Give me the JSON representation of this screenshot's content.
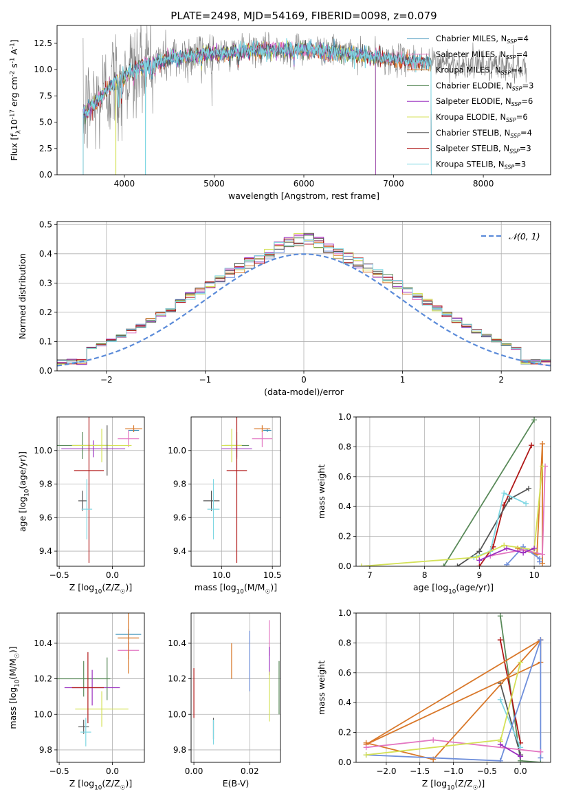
{
  "title": "PLATE=2498, MJD=54169, FIBERID=0098, z=0.079",
  "colors": {
    "Chabrier MILES": "#3a8fb7",
    "Salpeter MILES": "#e377c2",
    "Kroupa MILES": "#d9782a",
    "Chabrier ELODIE": "#5a8a5a",
    "Salpeter ELODIE": "#9b30c0",
    "Kroupa ELODIE": "#d4e157",
    "Chabrier STELIB": "#555555",
    "Salpeter STELIB": "#b01818",
    "Kroupa STELIB": "#7fd7e3",
    "MILES_mw_blue": "#6f8fdb",
    "data_grey": "#808080",
    "gauss": "#5b8bd9"
  },
  "chart_data": [
    {
      "id": "spectrum",
      "type": "line",
      "xlabel": "wavelength [Angstrom, rest frame]",
      "ylabel": "Flux [f$_\\lambda$10$^{-17}$ erg cm$^{-2}$ s$^{-1}$ A$^{-1}$]",
      "xlim": [
        3250,
        8750
      ],
      "ylim": [
        0,
        14.2
      ],
      "xticks": [
        4000,
        5000,
        6000,
        7000,
        8000
      ],
      "yticks": [
        0.0,
        2.5,
        5.0,
        7.5,
        10.0,
        12.5
      ],
      "grid": false,
      "legend_position": "right",
      "legend": [
        {
          "key": "Chabrier MILES",
          "label": "Chabrier MILES, N",
          "sub": "SSP",
          "n": "=4"
        },
        {
          "key": "Salpeter MILES",
          "label": "Salpeter MILES, N",
          "sub": "SSP",
          "n": "=4"
        },
        {
          "key": "Kroupa MILES",
          "label": "Kroupa MILES, N",
          "sub": "SSP",
          "n": "=4"
        },
        {
          "key": "Chabrier ELODIE",
          "label": "Chabrier ELODIE, N",
          "sub": "SSP",
          "n": "=3"
        },
        {
          "key": "Salpeter ELODIE",
          "label": "Salpeter ELODIE, N",
          "sub": "SSP",
          "n": "=6"
        },
        {
          "key": "Kroupa ELODIE",
          "label": "Kroupa ELODIE, N",
          "sub": "SSP",
          "n": "=6"
        },
        {
          "key": "Chabrier STELIB",
          "label": "Chabrier STELIB, N",
          "sub": "SSP",
          "n": "=4"
        },
        {
          "key": "Salpeter STELIB",
          "label": "Salpeter STELIB, N",
          "sub": "SSP",
          "n": "=3"
        },
        {
          "key": "Kroupa STELIB",
          "label": "Kroupa STELIB, N",
          "sub": "SSP",
          "n": "=3"
        }
      ],
      "continuum_anchors": [
        [
          3540,
          5.8
        ],
        [
          3700,
          7.0
        ],
        [
          3850,
          8.6
        ],
        [
          4000,
          9.6
        ],
        [
          4200,
          10.4
        ],
        [
          4500,
          11.1
        ],
        [
          5000,
          11.6
        ],
        [
          5500,
          11.9
        ],
        [
          6000,
          12.0
        ],
        [
          6500,
          11.6
        ],
        [
          7000,
          11.0
        ],
        [
          7500,
          10.7
        ],
        [
          8000,
          10.4
        ],
        [
          8500,
          10.2
        ]
      ],
      "model_ranges": {
        "ELODIE": [
          3540,
          6800
        ],
        "STELIB": [
          3540,
          7420
        ],
        "MILES": [
          3540,
          7420
        ]
      }
    },
    {
      "id": "residuals",
      "type": "histogram",
      "xlabel": "(data-model)/error",
      "ylabel": "Normed distribution",
      "xlim": [
        -2.5,
        2.5
      ],
      "ylim": [
        0,
        0.51
      ],
      "xticks": [
        -2,
        -1,
        0,
        1,
        2
      ],
      "yticks": [
        0.0,
        0.1,
        0.2,
        0.3,
        0.4,
        0.5
      ],
      "grid": true,
      "legend_position": "upper right",
      "legend_label": "𝒩(0, 1)",
      "bin_width": 0.1
    },
    {
      "id": "age_vs_Z",
      "type": "scatter",
      "xlabel": "Z [log$_{10}$(Z/Z$_\\odot$)]",
      "ylabel": "age  [log$_{10}$(age/yr)]",
      "xlim": [
        -0.52,
        0.3
      ],
      "ylim": [
        9.31,
        10.2
      ],
      "xticks": [
        -0.5,
        0.0
      ],
      "yticks": [
        9.4,
        9.6,
        9.8,
        10.0
      ],
      "grid": true,
      "points": [
        {
          "key": "Chabrier MILES",
          "x": 0.2,
          "y": 10.12,
          "xerr": 0.05,
          "yerr": 0.01
        },
        {
          "key": "Salpeter MILES",
          "x": 0.15,
          "y": 10.07,
          "xerr": 0.1,
          "yerr": 0.05
        },
        {
          "key": "Kroupa MILES",
          "x": 0.2,
          "y": 10.13,
          "xerr": 0.08,
          "yerr": 0.02
        },
        {
          "key": "Chabrier ELODIE",
          "x": -0.28,
          "y": 10.03,
          "xerr": 0.25,
          "yerr": 0.08
        },
        {
          "key": "Salpeter ELODIE",
          "x": -0.18,
          "y": 10.01,
          "xerr": 0.3,
          "yerr": 0.05
        },
        {
          "key": "Kroupa ELODIE",
          "x": -0.1,
          "y": 10.03,
          "xerr": 0.28,
          "yerr": 0.1
        },
        {
          "key": "Chabrier STELIB",
          "x": -0.28,
          "y": 9.7,
          "xerr": 0.04,
          "yerr": 0.06
        },
        {
          "key": "Salpeter STELIB",
          "x": -0.22,
          "y": 9.88,
          "xerr": 0.14,
          "yerr": 0.55
        },
        {
          "key": "Kroupa STELIB",
          "x": -0.24,
          "y": 9.65,
          "xerr": 0.05,
          "yerr": 0.18
        },
        {
          "key": "Chabrier STELIB",
          "x": -0.05,
          "y": 10.0,
          "xerr": 0.0,
          "yerr": 0.15
        }
      ]
    },
    {
      "id": "age_vs_mass",
      "type": "scatter",
      "xlabel": "mass [log$_{10}$(M/M$_\\odot$)]",
      "ylabel": "",
      "xlim": [
        9.7,
        10.58
      ],
      "ylim": [
        9.31,
        10.2
      ],
      "xticks": [
        10.0,
        10.5
      ],
      "yticks": [
        9.4,
        9.6,
        9.8,
        10.0
      ],
      "grid": true,
      "points": [
        {
          "key": "Chabrier MILES",
          "x": 10.45,
          "y": 10.12,
          "xerr": 0.04,
          "yerr": 0.01
        },
        {
          "key": "Salpeter MILES",
          "x": 10.4,
          "y": 10.07,
          "xerr": 0.1,
          "yerr": 0.05
        },
        {
          "key": "Kroupa MILES",
          "x": 10.4,
          "y": 10.13,
          "xerr": 0.08,
          "yerr": 0.02
        },
        {
          "key": "Chabrier ELODIE",
          "x": 10.15,
          "y": 10.03,
          "xerr": 0.12,
          "yerr": 0.08
        },
        {
          "key": "Salpeter ELODIE",
          "x": 10.15,
          "y": 10.01,
          "xerr": 0.15,
          "yerr": 0.05
        },
        {
          "key": "Kroupa ELODIE",
          "x": 10.1,
          "y": 10.03,
          "xerr": 0.1,
          "yerr": 0.1
        },
        {
          "key": "Chabrier STELIB",
          "x": 9.9,
          "y": 9.7,
          "xerr": 0.08,
          "yerr": 0.06
        },
        {
          "key": "Salpeter STELIB",
          "x": 10.15,
          "y": 9.88,
          "xerr": 0.1,
          "yerr": 0.55
        },
        {
          "key": "Kroupa STELIB",
          "x": 9.92,
          "y": 9.65,
          "xerr": 0.06,
          "yerr": 0.18
        }
      ]
    },
    {
      "id": "mw_vs_age",
      "type": "line",
      "xlabel": "age  [log$_{10}$(age/yr)]",
      "ylabel": "mass weight",
      "xlim": [
        6.75,
        10.3
      ],
      "ylim": [
        0,
        1.0
      ],
      "xticks": [
        7,
        8,
        9,
        10
      ],
      "yticks": [
        0.0,
        0.2,
        0.4,
        0.6,
        0.8,
        1.0
      ],
      "grid": true,
      "series": [
        {
          "key": "Chabrier ELODIE",
          "x": [
            8.35,
            10.0
          ],
          "y": [
            0.0,
            0.98
          ]
        },
        {
          "key": "Kroupa MILES",
          "x": [
            9.7,
            10.05,
            10.15,
            10.15
          ],
          "y": [
            0.12,
            0.08,
            0.82,
            0.02
          ]
        },
        {
          "key": "MILES_mw_blue",
          "x": [
            9.5,
            9.8,
            10.1,
            10.1
          ],
          "y": [
            0.01,
            0.13,
            0.05,
            0.03
          ]
        },
        {
          "key": "Salpeter MILES",
          "x": [
            9.2,
            9.8,
            10.15,
            10.2
          ],
          "y": [
            0.07,
            0.11,
            0.08,
            0.67
          ]
        },
        {
          "key": "Salpeter STELIB",
          "x": [
            9.0,
            9.25,
            9.45,
            9.95
          ],
          "y": [
            0.0,
            0.13,
            0.41,
            0.81
          ]
        },
        {
          "key": "Chabrier STELIB",
          "x": [
            8.6,
            9.0,
            9.55,
            9.9
          ],
          "y": [
            0.0,
            0.1,
            0.45,
            0.52
          ]
        },
        {
          "key": "Kroupa STELIB",
          "x": [
            8.9,
            9.2,
            9.45,
            9.85
          ],
          "y": [
            0.06,
            0.1,
            0.49,
            0.42
          ]
        },
        {
          "key": "Kroupa ELODIE",
          "x": [
            6.85,
            8.95,
            9.45,
            10.0,
            10.15
          ],
          "y": [
            0.0,
            0.06,
            0.14,
            0.11,
            0.67
          ]
        },
        {
          "key": "Salpeter ELODIE",
          "x": [
            9.0,
            9.5,
            9.8,
            10.0
          ],
          "y": [
            0.04,
            0.12,
            0.09,
            0.12
          ]
        }
      ]
    },
    {
      "id": "mass_vs_Z",
      "type": "scatter",
      "xlabel": "Z [log$_{10}$(Z/Z$_\\odot$)]",
      "ylabel": "mass [log$_{10}$(M/M$_\\odot$)]",
      "xlim": [
        -0.52,
        0.3
      ],
      "ylim": [
        9.73,
        10.57
      ],
      "xticks": [
        -0.5,
        0.0
      ],
      "yticks": [
        9.8,
        10.0,
        10.2,
        10.4
      ],
      "grid": true,
      "points": [
        {
          "key": "Chabrier MILES",
          "x": 0.15,
          "y": 10.45,
          "xerr": 0.12,
          "yerr": 0.03
        },
        {
          "key": "Salpeter MILES",
          "x": 0.15,
          "y": 10.36,
          "xerr": 0.1,
          "yerr": 0.05
        },
        {
          "key": "Kroupa MILES",
          "x": 0.15,
          "y": 10.43,
          "xerr": 0.1,
          "yerr": 0.2
        },
        {
          "key": "Chabrier ELODIE",
          "x": -0.27,
          "y": 10.2,
          "xerr": 0.25,
          "yerr": 0.1
        },
        {
          "key": "Salpeter ELODIE",
          "x": -0.19,
          "y": 10.15,
          "xerr": 0.26,
          "yerr": 0.1
        },
        {
          "key": "Kroupa ELODIE",
          "x": -0.1,
          "y": 10.03,
          "xerr": 0.25,
          "yerr": 0.1
        },
        {
          "key": "Chabrier STELIB",
          "x": -0.27,
          "y": 9.93,
          "xerr": 0.05,
          "yerr": 0.04
        },
        {
          "key": "Salpeter STELIB",
          "x": -0.23,
          "y": 10.15,
          "xerr": 0.15,
          "yerr": 0.2
        },
        {
          "key": "Kroupa STELIB",
          "x": -0.25,
          "y": 9.9,
          "xerr": 0.05,
          "yerr": 0.08
        },
        {
          "key": "Chabrier ELODIE",
          "x": -0.05,
          "y": 10.2,
          "xerr": 0.0,
          "yerr": 0.12
        }
      ]
    },
    {
      "id": "mass_vs_ebv",
      "type": "scatter",
      "xlabel": "E(B-V)",
      "ylabel": "",
      "xlim": [
        -0.001,
        0.031
      ],
      "ylim": [
        9.73,
        10.57
      ],
      "xticks": [
        0.0,
        0.02
      ],
      "xticklabels": [
        "0.00",
        "0.02"
      ],
      "yticks": [
        9.8,
        10.0,
        10.2,
        10.4
      ],
      "grid": true,
      "points": [
        {
          "key": "Salpeter STELIB",
          "x": 0.0,
          "y": 10.12,
          "xerr": 0,
          "yerr": 0.14
        },
        {
          "key": "Chabrier STELIB",
          "x": 0.007,
          "y": 9.92,
          "xerr": 0,
          "yerr": 0.06
        },
        {
          "key": "Kroupa STELIB",
          "x": 0.007,
          "y": 9.9,
          "xerr": 0,
          "yerr": 0.07
        },
        {
          "key": "Kroupa MILES",
          "x": 0.0135,
          "y": 10.3,
          "xerr": 0,
          "yerr": 0.1
        },
        {
          "key": "MILES_mw_blue",
          "x": 0.02,
          "y": 10.3,
          "xerr": 0,
          "yerr": 0.17
        },
        {
          "key": "Salpeter MILES",
          "x": 0.027,
          "y": 10.43,
          "xerr": 0,
          "yerr": 0.1
        },
        {
          "key": "Salpeter ELODIE",
          "x": 0.027,
          "y": 10.3,
          "xerr": 0,
          "yerr": 0.08
        },
        {
          "key": "Kroupa ELODIE",
          "x": 0.027,
          "y": 10.1,
          "xerr": 0,
          "yerr": 0.14
        },
        {
          "key": "Chabrier ELODIE",
          "x": 0.0305,
          "y": 10.15,
          "xerr": 0,
          "yerr": 0.15
        }
      ]
    },
    {
      "id": "mw_vs_Z",
      "type": "line",
      "xlabel": "Z [log$_{10}$(Z/Z$_\\odot$)]",
      "ylabel": "mass weight",
      "xlim": [
        -2.45,
        0.45
      ],
      "ylim": [
        0,
        1.0
      ],
      "xticks": [
        -2.0,
        -1.5,
        -1.0,
        -0.5,
        0.0
      ],
      "yticks": [
        0.0,
        0.2,
        0.4,
        0.6,
        0.8,
        1.0
      ],
      "grid": true,
      "series": [
        {
          "key": "Chabrier ELODIE",
          "x": [
            -0.3,
            0.0,
            0.3
          ],
          "y": [
            0.98,
            0.01,
            0.0
          ]
        },
        {
          "key": "Salpeter STELIB",
          "x": [
            -0.3,
            0.0
          ],
          "y": [
            0.82,
            0.13
          ]
        },
        {
          "key": "Chabrier STELIB",
          "x": [
            -0.3,
            0.0
          ],
          "y": [
            0.53,
            0.05
          ]
        },
        {
          "key": "Kroupa STELIB",
          "x": [
            -0.3,
            0.0
          ],
          "y": [
            0.42,
            0.1
          ]
        },
        {
          "key": "Kroupa MILES",
          "x": [
            -2.3,
            -1.3,
            0.3,
            0.3,
            -2.3,
            0.3
          ],
          "y": [
            0.13,
            0.02,
            0.82,
            0.67,
            0.12,
            0.82
          ]
        },
        {
          "key": "MILES_mw_blue",
          "x": [
            -2.3,
            -0.3,
            0.3,
            0.3
          ],
          "y": [
            0.05,
            0.01,
            0.82,
            0.03
          ]
        },
        {
          "key": "Salpeter MILES",
          "x": [
            -2.3,
            -1.3,
            0.3
          ],
          "y": [
            0.1,
            0.15,
            0.07
          ]
        },
        {
          "key": "Kroupa ELODIE",
          "x": [
            -2.3,
            -0.3,
            -0.3,
            0.0
          ],
          "y": [
            0.05,
            0.15,
            0.14,
            0.67
          ]
        },
        {
          "key": "Salpeter ELODIE",
          "x": [
            -0.3,
            0.0
          ],
          "y": [
            0.12,
            0.04
          ]
        }
      ]
    }
  ]
}
